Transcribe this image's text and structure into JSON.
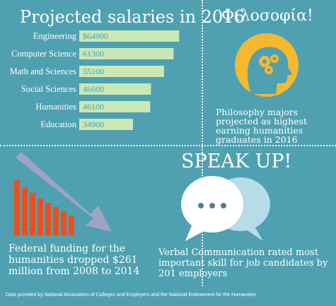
{
  "chart_data": {
    "type": "bar",
    "orientation": "horizontal",
    "title": "Projected salaries in 2016",
    "categories": [
      "Engineering",
      "Computer Science",
      "Math and Sciences",
      "Social Sciences",
      "Humanities",
      "Education"
    ],
    "values": [
      64900,
      61300,
      55100,
      46600,
      46100,
      34900
    ],
    "value_labels": [
      "$64900",
      "61300",
      "55100",
      "46600",
      "46100",
      "34900"
    ],
    "xlim": [
      0,
      68000
    ],
    "grid": false,
    "bar_color": "#c9e8b6"
  },
  "philosophy": {
    "title": "Φιλοσοφία!",
    "caption": "Philosophy majors projected as highest earning humanities graduates in 2016",
    "icon": "head-gears-icon"
  },
  "funding": {
    "caption": "Federal funding for the humanities dropped $261 million from 2008 to 2014",
    "icon": "declining-bars-arrow-icon"
  },
  "speak": {
    "title": "SPEAK UP!",
    "caption": "Verbal Communication rated most important skill for job candidates by 201 employers",
    "icon": "speech-bubbles-icon"
  },
  "footer": "Data provided by National Association of Colleges and Employers and the National Endowment for the Humanities",
  "colors": {
    "background": "#4fa1b1",
    "bar": "#c9e8b6",
    "accent_orange": "#e9501f",
    "accent_yellow": "#f5b82e"
  }
}
